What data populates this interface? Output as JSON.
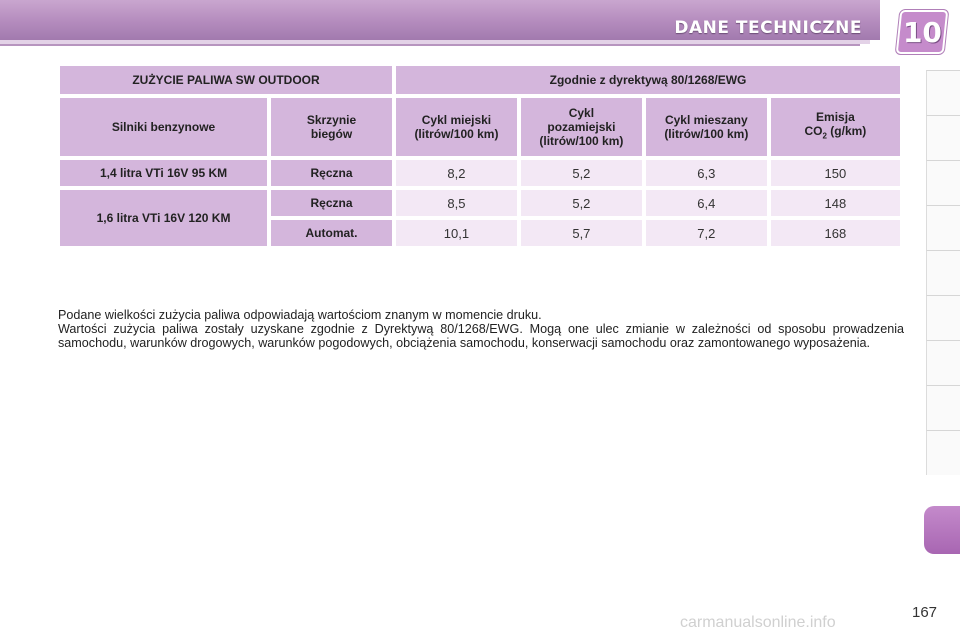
{
  "header": {
    "title": "DANE TECHNICZNE",
    "chapter": "10"
  },
  "table": {
    "title_left": "ZUŻYCIE PALIWA  SW OUTDOOR",
    "title_right": "Zgodnie z dyrektywą 80/1268/EWG",
    "headers": {
      "engines": "Silniki benzynowe",
      "gearbox_1": "Skrzynie",
      "gearbox_2": "biegów",
      "urban_1": "Cykl miejski",
      "urban_2": "(litrów/100 km)",
      "extra_1": "Cykl",
      "extra_2": "pozamiejski",
      "extra_3": "(litrów/100 km)",
      "mixed_1": "Cykl mieszany",
      "mixed_2": "(litrów/100 km)",
      "emission_1": "Emisja",
      "emission_co": "CO",
      "emission_sub": "2",
      "emission_unit": " (g/km)"
    },
    "rows": [
      {
        "engine": "1,4 litra VTi 16V 95 KM",
        "gearbox": "Ręczna",
        "urban": "8,2",
        "extra": "5,2",
        "mixed": "6,3",
        "co2": "150"
      },
      {
        "engine": "1,6 litra VTi 16V 120 KM",
        "gearbox": "Ręczna",
        "urban": "8,5",
        "extra": "5,2",
        "mixed": "6,4",
        "co2": "148"
      },
      {
        "engine": "",
        "gearbox": "Automat.",
        "urban": "10,1",
        "extra": "5,7",
        "mixed": "7,2",
        "co2": "168"
      }
    ]
  },
  "notes": {
    "line1": "Podane wielkości zużycia paliwa odpowiadają wartościom znanym w momencie druku.",
    "line2": "Wartości zużycia paliwa zostały uzyskane zgodnie z Dyrektywą 80/1268/EWG. Mogą one ulec zmianie w zależności od sposobu prowadzenia samochodu, warunków drogowych, warunków pogodowych, obciążenia samochodu, konserwacji samochodu oraz zamontowanego wyposażenia."
  },
  "page_number": "167",
  "watermark": "carmanualsonline.info",
  "colors": {
    "header": "#b48bbd",
    "cell_header": "#d4b6dc",
    "cell_value": "#f3e8f5",
    "accent": "#c58bcb"
  }
}
